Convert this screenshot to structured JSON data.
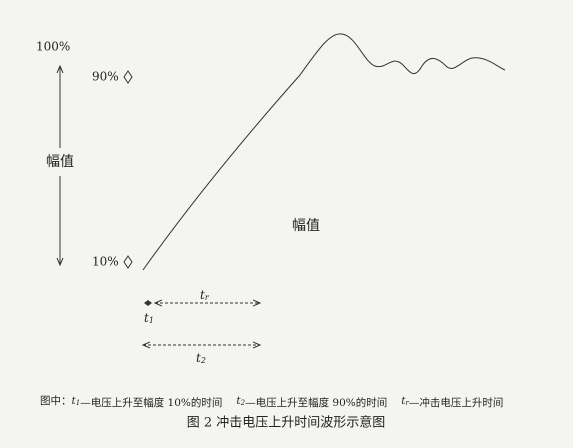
{
  "diagram": {
    "labels": {
      "percent_100": "100%",
      "percent_90": "90%",
      "percent_10": "10%",
      "amplitude_left": "幅值",
      "amplitude_mid": "幅值"
    },
    "time_marks": {
      "t1": {
        "symbol": "t",
        "sub": "1"
      },
      "tr": {
        "symbol": "t",
        "sub": "r"
      },
      "t2": {
        "symbol": "t",
        "sub": "2"
      }
    },
    "legend": {
      "prefix": "图中：",
      "items": [
        {
          "symbol": "t",
          "sub": "1",
          "text": "—电压上升至幅度 10%的时间"
        },
        {
          "symbol": "t",
          "sub": "2",
          "text": "—电压上升至幅度 90%的时间"
        },
        {
          "symbol": "t",
          "sub": "r",
          "text": "—冲击电压上升时间"
        }
      ]
    },
    "caption": "图 2 冲击电压上升时间波形示意图"
  }
}
